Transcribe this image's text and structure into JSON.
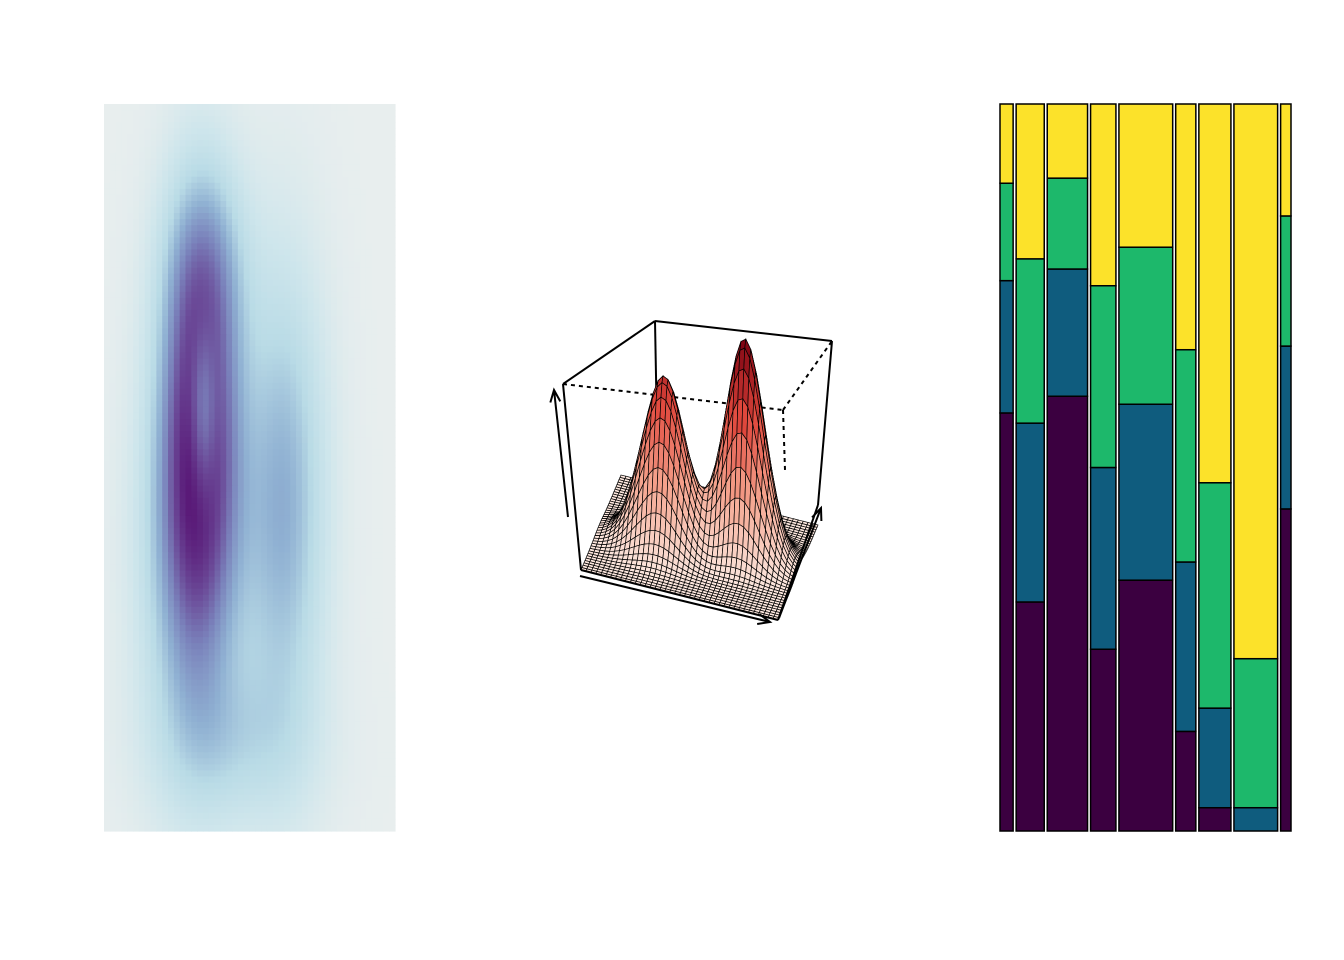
{
  "chart_data": [
    {
      "type": "heatmap",
      "title": "",
      "xlabel": "",
      "ylabel": "",
      "colormap": [
        "#e8eeee",
        "#cfe6ec",
        "#b9dbe6",
        "#8fb0d2",
        "#7a82bb",
        "#6b4a98",
        "#5a1a78"
      ],
      "description_free": true,
      "model": {
        "components": [
          {
            "cx": 0.33,
            "cy": 0.44,
            "sx": 0.09,
            "sy": 0.19,
            "w": 1.0
          },
          {
            "cx": 0.3,
            "cy": 0.62,
            "sx": 0.12,
            "sy": 0.2,
            "w": 0.55
          },
          {
            "cx": 0.62,
            "cy": 0.55,
            "sx": 0.1,
            "sy": 0.22,
            "w": 0.55
          },
          {
            "cx": 0.35,
            "cy": 0.22,
            "sx": 0.1,
            "sy": 0.1,
            "w": 0.35
          },
          {
            "cx": 0.45,
            "cy": 0.88,
            "sx": 0.18,
            "sy": 0.08,
            "w": 0.25
          }
        ],
        "hole": {
          "cx": 0.34,
          "cy": 0.43,
          "sx": 0.035,
          "sy": 0.09,
          "w": 0.55
        },
        "grid_cols": 50,
        "grid_rows": 120
      }
    },
    {
      "type": "surface",
      "title": "",
      "xlabel": "",
      "ylabel": "",
      "zlabel": "",
      "surface_colors": {
        "low": "#fbe6dd",
        "high": "#7a0010",
        "line": "#000000"
      },
      "peaks": [
        {
          "x": 0.33,
          "y": 0.45,
          "height": 0.78,
          "spread": 0.11
        },
        {
          "x": 0.72,
          "y": 0.55,
          "height": 1.0,
          "spread": 0.1
        }
      ],
      "grid": 40
    },
    {
      "type": "mosaic",
      "title": "",
      "xlabel": "",
      "ylabel": "",
      "colors": [
        "#3b0040",
        "#0f5c7e",
        "#1db86b",
        "#fce22a"
      ],
      "columns": [
        {
          "width": 0.043,
          "proportions": [
            0.575,
            0.182,
            0.134,
            0.109
          ]
        },
        {
          "width": 0.092,
          "proportions": [
            0.315,
            0.246,
            0.226,
            0.213
          ]
        },
        {
          "width": 0.132,
          "proportions": [
            0.598,
            0.175,
            0.125,
            0.102
          ]
        },
        {
          "width": 0.083,
          "proportions": [
            0.25,
            0.25,
            0.25,
            0.25
          ]
        },
        {
          "width": 0.176,
          "proportions": [
            0.345,
            0.242,
            0.216,
            0.197
          ]
        },
        {
          "width": 0.066,
          "proportions": [
            0.137,
            0.233,
            0.292,
            0.338
          ]
        },
        {
          "width": 0.105,
          "proportions": [
            0.032,
            0.137,
            0.31,
            0.521
          ]
        },
        {
          "width": 0.143,
          "proportions": [
            0.0,
            0.032,
            0.205,
            0.763
          ]
        },
        {
          "width": 0.034,
          "proportions": [
            0.443,
            0.224,
            0.179,
            0.154
          ]
        }
      ]
    }
  ]
}
